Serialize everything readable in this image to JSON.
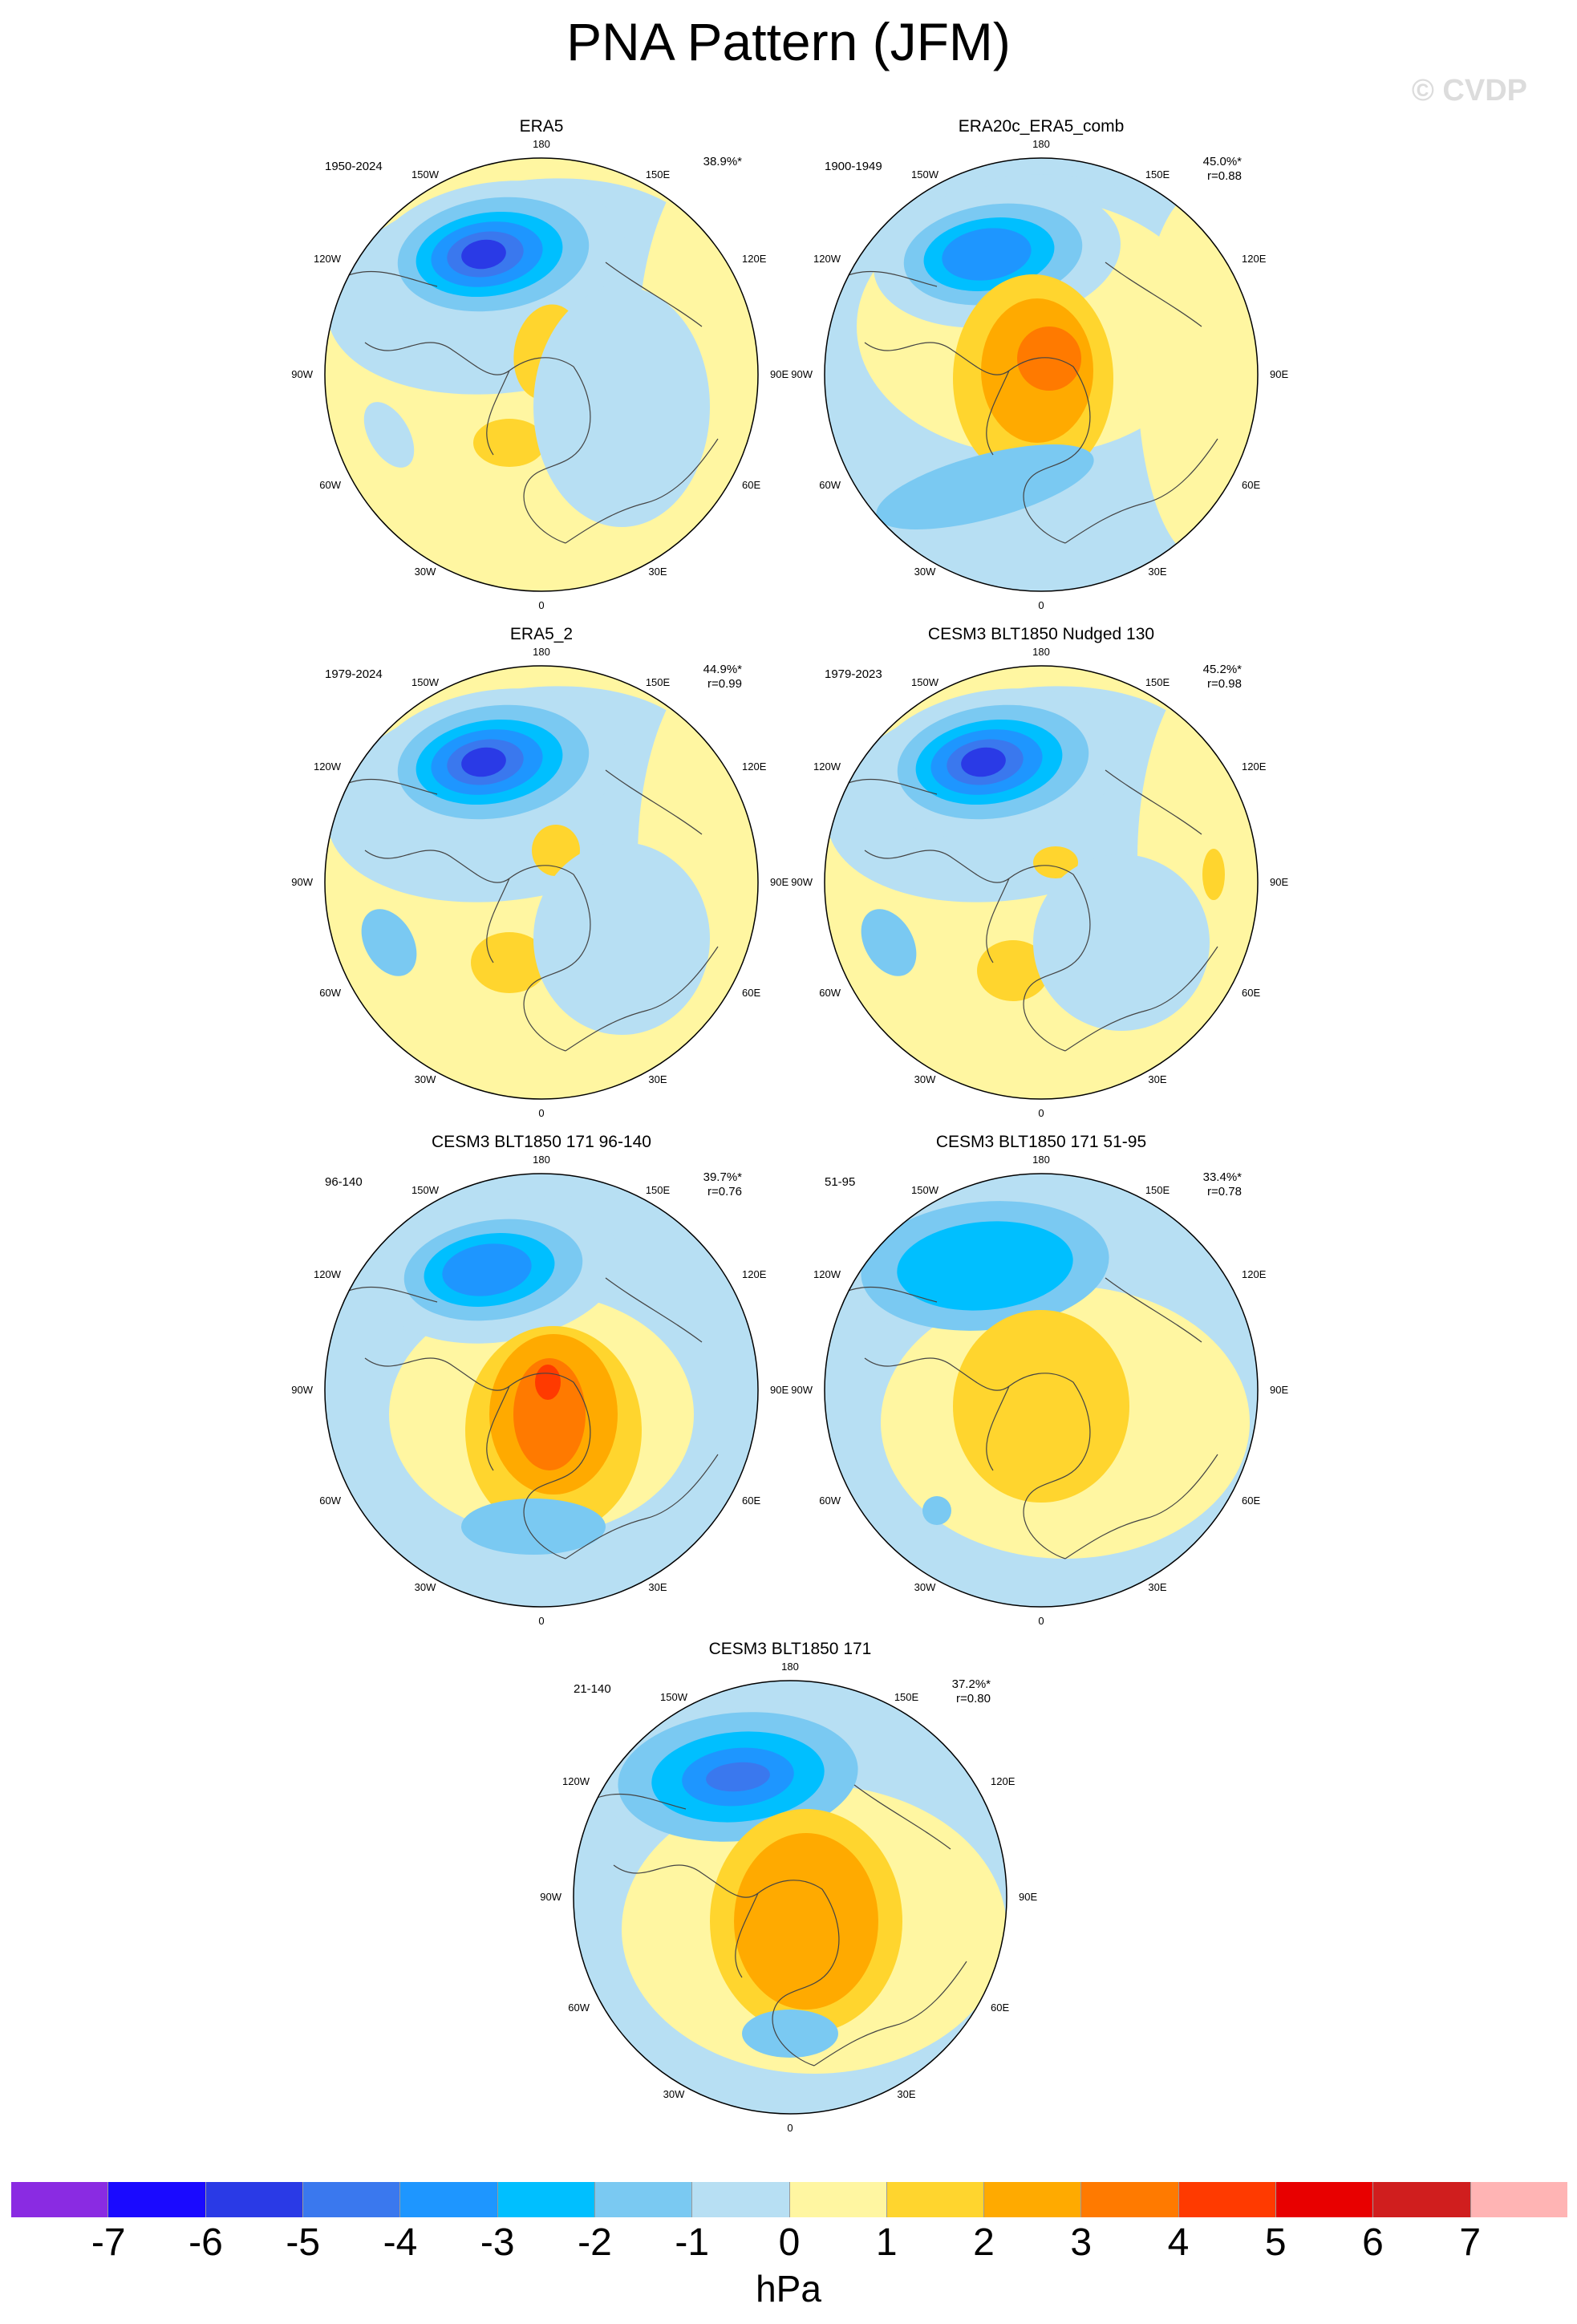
{
  "title": "PNA Pattern (JFM)",
  "watermark": "© CVDP",
  "lon_labels": {
    "n180": "180",
    "n150e": "150E",
    "n120e": "120E",
    "n90e": "90E",
    "n60e": "60E",
    "n30e": "30E",
    "n0": "0",
    "n30w": "30W",
    "n60w": "60W",
    "n90w": "90W",
    "n120w": "120W",
    "n150w": "150W"
  },
  "panels": [
    {
      "name": "ERA5",
      "period": "1950-2024",
      "pct": "38.9%*",
      "r": ""
    },
    {
      "name": "ERA20c_ERA5_comb",
      "period": "1900-1949",
      "pct": "45.0%*",
      "r": "r=0.88"
    },
    {
      "name": "ERA5_2",
      "period": "1979-2024",
      "pct": "44.9%*",
      "r": "r=0.99"
    },
    {
      "name": "CESM3 BLT1850 Nudged 130",
      "period": "1979-2023",
      "pct": "45.2%*",
      "r": "r=0.98"
    },
    {
      "name": "CESM3 BLT1850 171 96-140",
      "period": "96-140",
      "pct": "39.7%*",
      "r": "r=0.76"
    },
    {
      "name": "CESM3 BLT1850 171 51-95",
      "period": "51-95",
      "pct": "33.4%*",
      "r": "r=0.78"
    },
    {
      "name": "CESM3 BLT1850 171",
      "period": "21-140",
      "pct": "37.2%*",
      "r": "r=0.80"
    }
  ],
  "colorbar": {
    "colors": [
      "#8a2be2",
      "#1a0aff",
      "#2a3ae6",
      "#3a78ee",
      "#1e96ff",
      "#00bfff",
      "#7ac9f2",
      "#b7dff3",
      "#fff6a1",
      "#ffd52e",
      "#ffaa00",
      "#ff7a00",
      "#ff3a00",
      "#e80000",
      "#d01e1e",
      "#ffb4b4"
    ],
    "ticks": [
      "-7",
      "-6",
      "-5",
      "-4",
      "-3",
      "-2",
      "-1",
      "0",
      "1",
      "2",
      "3",
      "4",
      "5",
      "6",
      "7"
    ],
    "units": "hPa"
  }
}
